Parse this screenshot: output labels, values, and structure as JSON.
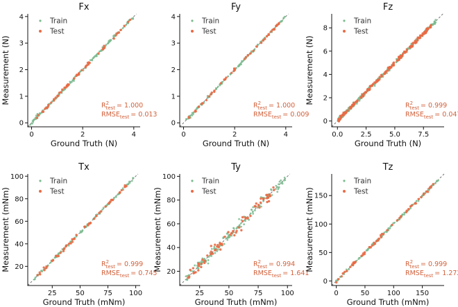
{
  "chart_data": [
    {
      "type": "scatter",
      "title": "Fx",
      "xlabel": "Ground Truth (N)",
      "ylabel": "Measurement (N)",
      "xlim": [
        -0.15,
        4.25
      ],
      "ylim": [
        -0.15,
        4.1
      ],
      "xticks": [
        0,
        2,
        4
      ],
      "yticks": [
        0,
        1,
        2,
        3,
        4
      ],
      "xtick_labels": [
        "0",
        "2",
        "4"
      ],
      "ytick_labels": [
        "0",
        "1",
        "2",
        "3",
        "4"
      ],
      "legend": [
        "Train",
        "Test"
      ],
      "legend_position": "top-left",
      "metrics": {
        "r2_label": "R",
        "r2_sup": "2",
        "r2_sub": "test",
        "r2_value": "= 1.000",
        "rmse_label": "RMSE",
        "rmse_sub": "test",
        "rmse_value": "= 0.013"
      },
      "series": [
        {
          "name": "Train",
          "color": "#7dbb8f",
          "range": [
            -0.05,
            4.0
          ],
          "n": 140,
          "noise": 0.03,
          "seed": 11
        },
        {
          "name": "Test",
          "color": "#ea6a45",
          "range": [
            0.2,
            3.9
          ],
          "n": 55,
          "noise": 0.03,
          "seed": 12
        }
      ]
    },
    {
      "type": "scatter",
      "title": "Fy",
      "xlabel": "Ground Truth (N)",
      "ylabel": "",
      "xlim": [
        -0.15,
        4.25
      ],
      "ylim": [
        -0.15,
        4.1
      ],
      "xticks": [
        0,
        2,
        4
      ],
      "yticks": [
        0,
        1,
        2,
        3,
        4
      ],
      "xtick_labels": [
        "0",
        "2",
        "4"
      ],
      "ytick_labels": [
        "0",
        "1",
        "2",
        "3",
        "4"
      ],
      "legend": [
        "Train",
        "Test"
      ],
      "legend_position": "top-left",
      "metrics": {
        "r2_label": "R",
        "r2_sup": "2",
        "r2_sub": "test",
        "r2_value": "= 1.000",
        "rmse_label": "RMSE",
        "rmse_sub": "test",
        "rmse_value": "= 0.009"
      },
      "series": [
        {
          "name": "Train",
          "color": "#7dbb8f",
          "range": [
            0.1,
            4.0
          ],
          "n": 120,
          "noise": 0.025,
          "seed": 21
        },
        {
          "name": "Test",
          "color": "#ea6a45",
          "range": [
            0.2,
            3.9
          ],
          "n": 45,
          "noise": 0.025,
          "seed": 22
        }
      ]
    },
    {
      "type": "scatter",
      "title": "Fz",
      "xlabel": "Ground Truth (N)",
      "ylabel": "Measurement (N)",
      "xlim": [
        -0.5,
        9.3
      ],
      "ylim": [
        -0.5,
        9.2
      ],
      "xticks": [
        0.0,
        2.5,
        5.0,
        7.5
      ],
      "yticks": [
        0,
        2,
        4,
        6,
        8
      ],
      "xtick_labels": [
        "0.0",
        "2.5",
        "5.0",
        "7.5"
      ],
      "ytick_labels": [
        "0",
        "2",
        "4",
        "6",
        "8"
      ],
      "legend": [
        "Train",
        "Test"
      ],
      "legend_position": "top-left",
      "metrics": {
        "r2_label": "R",
        "r2_sup": "2",
        "r2_sub": "test",
        "r2_value": "= 0.999",
        "rmse_label": "RMSE",
        "rmse_sub": "test",
        "rmse_value": "= 0.047"
      },
      "series": [
        {
          "name": "Train",
          "color": "#7dbb8f",
          "range": [
            0.0,
            8.6
          ],
          "n": 260,
          "noise": 0.09,
          "seed": 31
        },
        {
          "name": "Test",
          "color": "#ea6a45",
          "range": [
            0.0,
            8.2
          ],
          "n": 170,
          "noise": 0.08,
          "seed": 32
        }
      ]
    },
    {
      "type": "scatter",
      "title": "Tx",
      "xlabel": "Ground Truth (mNm)",
      "ylabel": "Measurement (mNm)",
      "xlim": [
        3,
        104
      ],
      "ylim": [
        3,
        102
      ],
      "xticks": [
        25,
        50,
        75,
        100
      ],
      "yticks": [
        20,
        40,
        60,
        80,
        100
      ],
      "xtick_labels": [
        "25",
        "50",
        "75",
        "100"
      ],
      "ytick_labels": [
        "20",
        "40",
        "60",
        "80",
        "100"
      ],
      "legend": [
        "Train",
        "Test"
      ],
      "legend_position": "top-left",
      "metrics": {
        "r2_label": "R",
        "r2_sup": "2",
        "r2_sub": "test",
        "r2_value": "= 0.999",
        "rmse_label": "RMSE",
        "rmse_sub": "test",
        "rmse_value": "= 0.745"
      },
      "series": [
        {
          "name": "Train",
          "color": "#7dbb8f",
          "range": [
            8,
            98
          ],
          "n": 110,
          "noise": 0.6,
          "seed": 41
        },
        {
          "name": "Test",
          "color": "#ea6a45",
          "range": [
            10,
            92
          ],
          "n": 50,
          "noise": 0.8,
          "seed": 42
        }
      ]
    },
    {
      "type": "scatter",
      "title": "Ty",
      "xlabel": "Ground Truth (mNm)",
      "ylabel": "Measurement (mNm)",
      "xlim": [
        8,
        104
      ],
      "ylim": [
        8,
        102
      ],
      "xticks": [
        25,
        50,
        75,
        100
      ],
      "yticks": [
        20,
        40,
        60,
        80,
        100
      ],
      "xtick_labels": [
        "25",
        "50",
        "75",
        "100"
      ],
      "ytick_labels": [
        "20",
        "40",
        "60",
        "80",
        "100"
      ],
      "legend": [
        "Train",
        "Test"
      ],
      "legend_position": "top-left",
      "metrics": {
        "r2_label": "R",
        "r2_sup": "2",
        "r2_sub": "test",
        "r2_value": "= 0.994",
        "rmse_label": "RMSE",
        "rmse_sub": "test",
        "rmse_value": "= 1.641"
      },
      "series": [
        {
          "name": "Train",
          "color": "#7dbb8f",
          "range": [
            13,
            98
          ],
          "n": 150,
          "noise": 1.8,
          "seed": 51
        },
        {
          "name": "Test",
          "color": "#ea6a45",
          "range": [
            15,
            92
          ],
          "n": 70,
          "noise": 2.4,
          "seed": 52
        }
      ]
    },
    {
      "type": "scatter",
      "title": "Tz",
      "xlabel": "Ground Truth (mNm)",
      "ylabel": "Measurement (mNm)",
      "xlim": [
        -8,
        188
      ],
      "ylim": [
        -8,
        188
      ],
      "xticks": [
        0,
        50,
        100,
        150
      ],
      "yticks": [
        0,
        50,
        100,
        150
      ],
      "xtick_labels": [
        "0",
        "50",
        "100",
        "150"
      ],
      "ytick_labels": [
        "0",
        "50",
        "100",
        "150"
      ],
      "legend": [
        "Train",
        "Test"
      ],
      "legend_position": "top-left",
      "metrics": {
        "r2_label": "R",
        "r2_sup": "2",
        "r2_sub": "test",
        "r2_value": "= 0.999",
        "rmse_label": "RMSE",
        "rmse_sub": "test",
        "rmse_value": "= 1.272"
      },
      "series": [
        {
          "name": "Train",
          "color": "#7dbb8f",
          "range": [
            -2,
            178
          ],
          "n": 130,
          "noise": 1.2,
          "seed": 61
        },
        {
          "name": "Test",
          "color": "#ea6a45",
          "range": [
            0,
            170
          ],
          "n": 55,
          "noise": 1.3,
          "seed": 62
        }
      ]
    }
  ]
}
